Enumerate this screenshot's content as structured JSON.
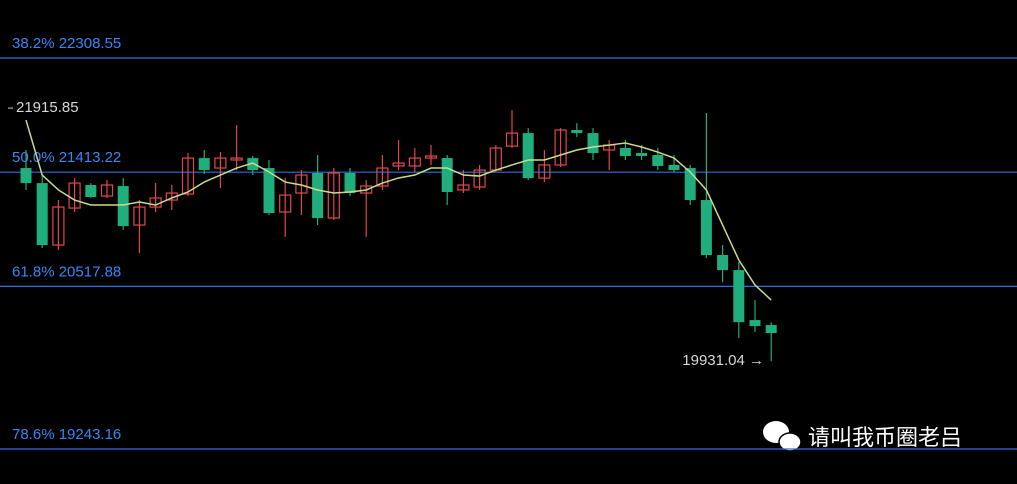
{
  "chart_data": {
    "type": "candlestick",
    "ylim": [
      18968.8,
      22763.26
    ],
    "up_color": "#e0474c",
    "down_color": "#1fae7c",
    "ma_color": "#c8dc8c",
    "fib_color": "#2f6fe0",
    "fib_label_color": "#3b86f5",
    "fib_levels": [
      {
        "value": 22308.55,
        "label": "38.2% 22308.55"
      },
      {
        "value": 21413.22,
        "label": "50.0% 21413.22"
      },
      {
        "value": 20517.88,
        "label": "61.8% 20517.88"
      },
      {
        "value": 19243.16,
        "label": "78.6% 19243.16"
      }
    ],
    "high_marker": 21915.85,
    "low_marker": {
      "value": 19931.04,
      "label": "19931.04 →"
    },
    "open": [
      21446,
      21328,
      20842,
      21132,
      21313,
      21226,
      21305,
      20999,
      21140,
      21195,
      21242,
      21524,
      21446,
      21509,
      21524,
      21446,
      21101,
      21250,
      21407,
      21054,
      21407,
      21250,
      21305,
      21462,
      21462,
      21524,
      21524,
      21274,
      21297,
      21430,
      21618,
      21720,
      21367,
      21470,
      21744,
      21720,
      21587,
      21603,
      21564,
      21548,
      21470,
      21446,
      21195,
      20764,
      20646,
      20254,
      20215
    ],
    "high": [
      21587,
      21391,
      21195,
      21367,
      21328,
      21352,
      21367,
      21195,
      21328,
      21313,
      21564,
      21587,
      21571,
      21783,
      21540,
      21509,
      21367,
      21430,
      21548,
      21446,
      21446,
      21352,
      21548,
      21665,
      21603,
      21626,
      21548,
      21430,
      21470,
      21626,
      21901,
      21759,
      21587,
      21759,
      21798,
      21759,
      21665,
      21665,
      21626,
      21603,
      21548,
      21470,
      21877,
      20842,
      20709,
      20411,
      20238
    ],
    "low": [
      21274,
      20819,
      20803,
      21101,
      21211,
      21211,
      20960,
      20779,
      21101,
      21117,
      21226,
      21399,
      21289,
      21430,
      21391,
      21077,
      20905,
      21077,
      20999,
      21038,
      21226,
      20905,
      21274,
      21430,
      21415,
      21470,
      21156,
      21250,
      21274,
      21415,
      21603,
      21352,
      21336,
      21454,
      21689,
      21509,
      21430,
      21509,
      21509,
      21430,
      21415,
      21156,
      20740,
      20552,
      20113,
      20160,
      19931.04
    ],
    "close": [
      21328,
      20842,
      21140,
      21328,
      21219,
      21313,
      20991,
      21140,
      21211,
      21250,
      21524,
      21430,
      21524,
      21524,
      21430,
      21093,
      21234,
      21391,
      21054,
      21407,
      21250,
      21305,
      21446,
      21485,
      21524,
      21540,
      21258,
      21313,
      21430,
      21603,
      21720,
      21367,
      21470,
      21744,
      21720,
      21564,
      21626,
      21540,
      21540,
      21462,
      21430,
      21195,
      20764,
      20646,
      20238,
      20207,
      20152
    ],
    "ma": [
      21822,
      21391,
      21274,
      21195,
      21156,
      21156,
      21156,
      21180,
      21156,
      21211,
      21258,
      21336,
      21391,
      21446,
      21485,
      21415,
      21336,
      21313,
      21274,
      21250,
      21258,
      21274,
      21328,
      21368,
      21391,
      21446,
      21446,
      21391,
      21383,
      21430,
      21470,
      21509,
      21509,
      21548,
      21587,
      21611,
      21626,
      21642,
      21611,
      21571,
      21524,
      21415,
      21274,
      20999,
      20725,
      20529,
      20411
    ]
  },
  "watermark": "请叫我币圈老吕"
}
